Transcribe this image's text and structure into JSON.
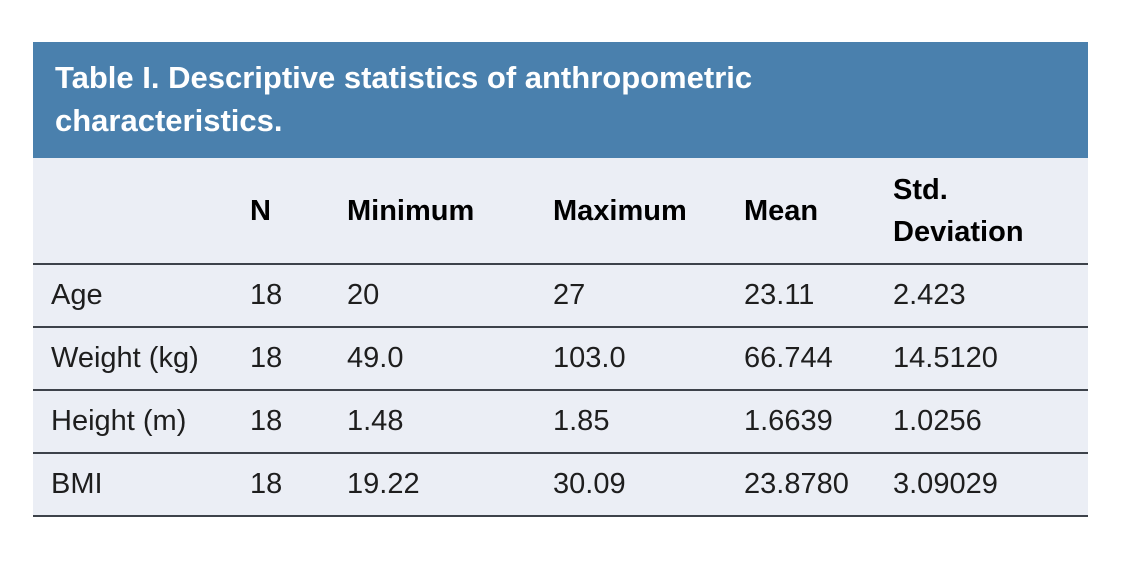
{
  "table": {
    "title": "Table I. Descriptive statistics of anthropometric characteristics.",
    "headers": [
      "N",
      "Minimum",
      "Maximum",
      "Mean",
      "Std. Deviation"
    ],
    "rows": [
      {
        "label": "Age",
        "n": "18",
        "min": "20",
        "max": "27",
        "mean": "23.11",
        "std": "2.423"
      },
      {
        "label": "Weight (kg)",
        "n": "18",
        "min": "49.0",
        "max": "103.0",
        "mean": "66.744",
        "std": "14.5120"
      },
      {
        "label": "Height (m)",
        "n": "18",
        "min": "1.48",
        "max": "1.85",
        "mean": "1.6639",
        "std": "1.0256"
      },
      {
        "label": "BMI",
        "n": "18",
        "min": "19.22",
        "max": "30.09",
        "mean": "23.8780",
        "std": "3.09029"
      }
    ],
    "colors": {
      "title_bg": "#4a80ad",
      "title_text": "#ffffff",
      "body_bg": "#ebeef5",
      "rule_line": "#3d424a",
      "header_text": "#000000",
      "cell_text": "#1e1e1e",
      "page_bg": "#ffffff"
    }
  },
  "chart_data": {
    "type": "table",
    "title": "Table I. Descriptive statistics of anthropometric characteristics.",
    "columns": [
      "",
      "N",
      "Minimum",
      "Maximum",
      "Mean",
      "Std. Deviation"
    ],
    "rows": [
      [
        "Age",
        18,
        20,
        27,
        23.11,
        2.423
      ],
      [
        "Weight (kg)",
        18,
        49.0,
        103.0,
        66.744,
        14.512
      ],
      [
        "Height (m)",
        18,
        1.48,
        1.85,
        1.6639,
        1.0256
      ],
      [
        "BMI",
        18,
        19.22,
        30.09,
        23.878,
        3.09029
      ]
    ]
  }
}
